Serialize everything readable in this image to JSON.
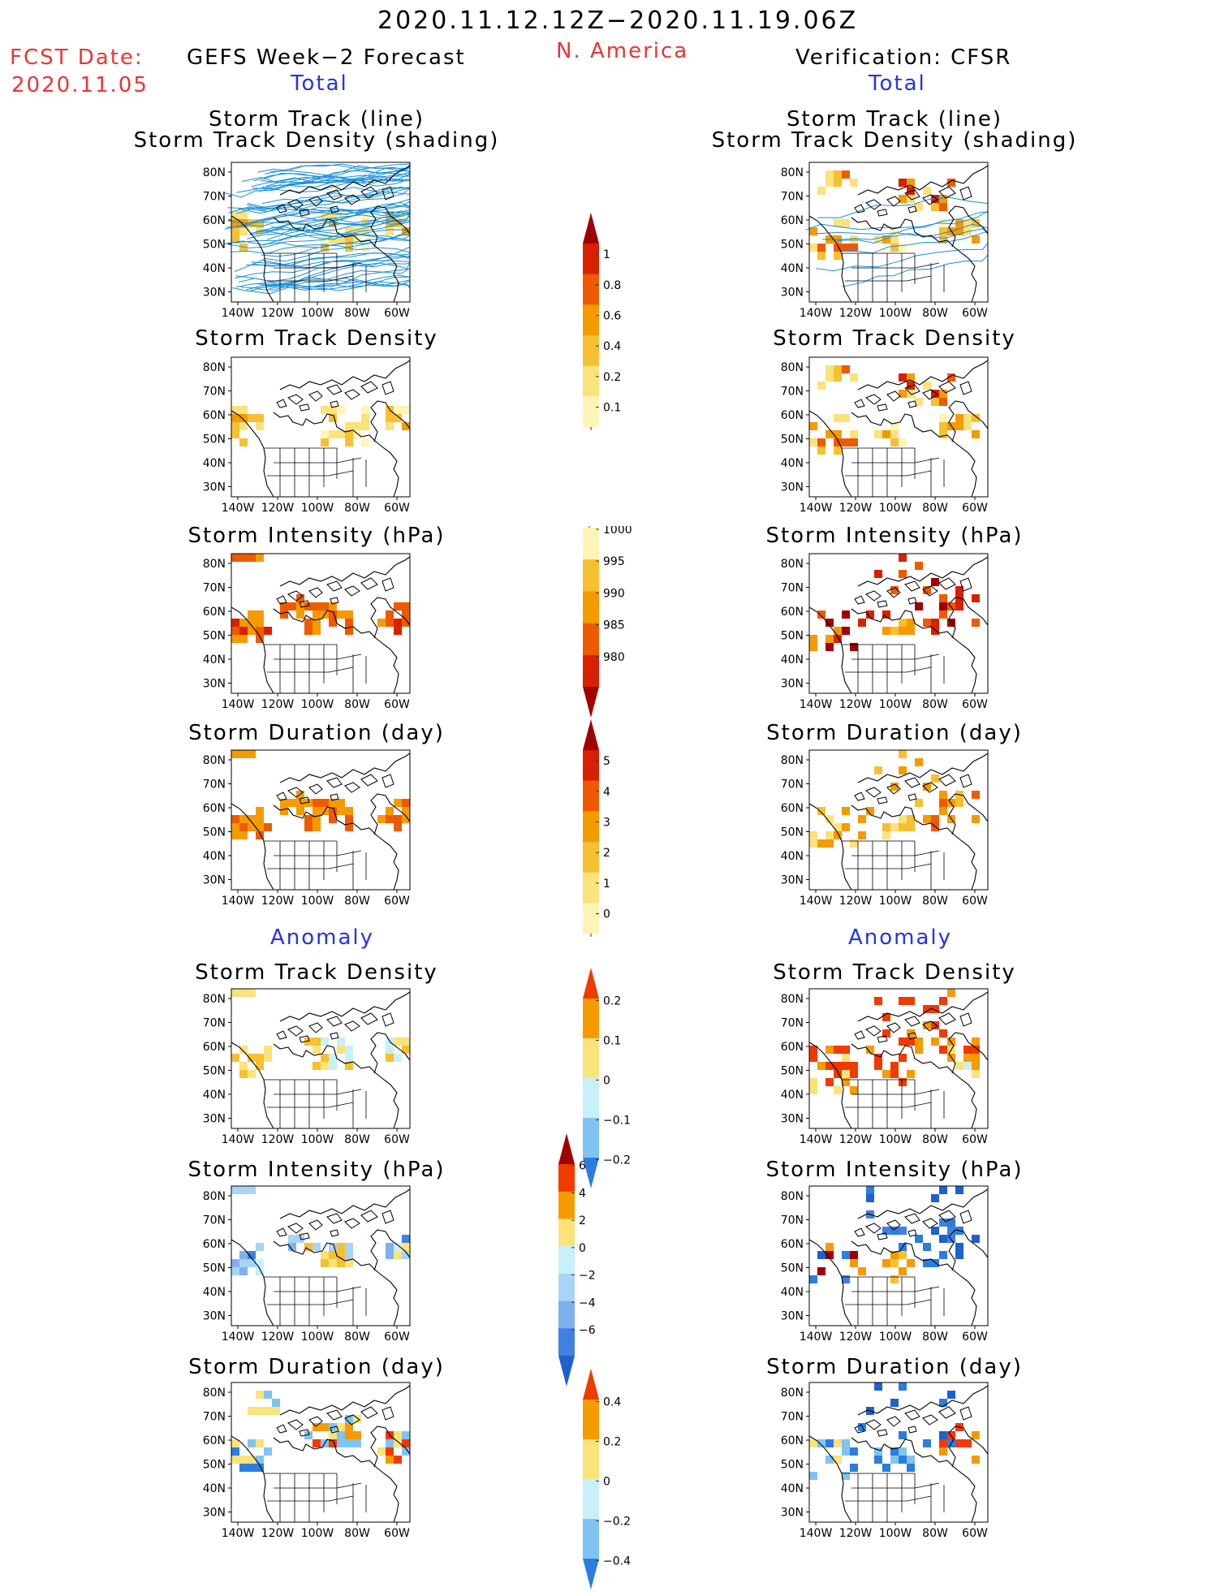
{
  "header": {
    "period": "2020.11.12.12Z−2020.11.19.06Z",
    "fcst_label": "FCST Date:",
    "fcst_date": "2020.11.05",
    "left_title": "GEFS Week−2 Forecast",
    "region": "N. America",
    "right_title": "Verification: CFSR",
    "total_left": "Total",
    "total_right": "Total",
    "anomaly_left": "Anomaly",
    "anomaly_right": "Anomaly"
  },
  "panel_titles": {
    "track_line_1": "Storm Track (line)",
    "track_line_2": "Storm Track Density (shading)",
    "density": "Storm Track Density",
    "intensity": "Storm Intensity (hPa)",
    "duration": "Storm Duration (day)"
  },
  "axes": {
    "lat_labels": [
      "80N",
      "70N",
      "60N",
      "50N",
      "40N",
      "30N"
    ],
    "lon_labels": [
      "140W",
      "120W",
      "100W",
      "80W",
      "60W"
    ]
  },
  "colorbars": {
    "density_total": {
      "labels": [
        "1",
        "0.8",
        "0.6",
        "0.4",
        "0.2",
        "0.1"
      ],
      "colors": [
        "#a00000",
        "#d92000",
        "#ef5a00",
        "#f59b00",
        "#f7c030",
        "#fbe27a",
        "#fdf5b8"
      ]
    },
    "intensity_total": {
      "labels": [
        "1000",
        "995",
        "990",
        "985",
        "980"
      ],
      "colors": [
        "#fdf5b8",
        "#f7c030",
        "#f59b00",
        "#ef5a00",
        "#d92000",
        "#a00000"
      ]
    },
    "duration_total": {
      "labels": [
        "5",
        "4",
        "3",
        "2",
        "1",
        "0"
      ],
      "colors": [
        "#a00000",
        "#d92000",
        "#ef5a00",
        "#f59b00",
        "#f7c030",
        "#fbe27a",
        "#fdf5b8"
      ]
    },
    "density_anom": {
      "labels": [
        "0.2",
        "0.1",
        "0",
        "−0.1",
        "−0.2"
      ],
      "colors": [
        "#ef3b00",
        "#f59b00",
        "#fbe27a",
        "#c8f0f8",
        "#7fc4f0",
        "#2b7de0"
      ]
    },
    "intensity_anom": {
      "labels": [
        "6",
        "4",
        "2",
        "0",
        "−2",
        "−4",
        "−6"
      ],
      "colors": [
        "#a00000",
        "#ef3b00",
        "#f59b00",
        "#fbe27a",
        "#c8f0f8",
        "#a8d4f5",
        "#7fb0ee",
        "#3f80e0",
        "#1f60d0"
      ]
    },
    "duration_anom": {
      "labels": [
        "0.4",
        "0.2",
        "0",
        "−0.2",
        "−0.4"
      ],
      "colors": [
        "#ef3b00",
        "#f59b00",
        "#fbe27a",
        "#c8f0f8",
        "#7fc4f0",
        "#2b7de0"
      ]
    }
  }
}
